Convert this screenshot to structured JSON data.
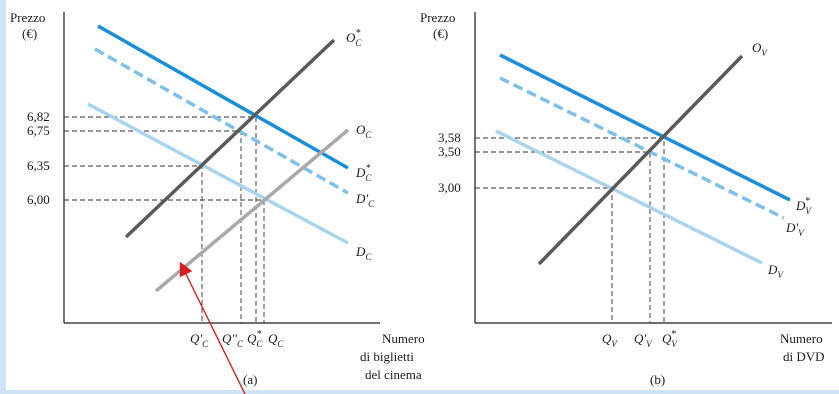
{
  "chart_data": [
    {
      "type": "line",
      "panel": "(a)",
      "ylabel_line1": "Prezzo",
      "ylabel_line2": "(€)",
      "xlabel_line1": "Numero",
      "xlabel_line2": "di biglietti",
      "xlabel_line3": "del cinema",
      "ytick_labels": [
        "6,82",
        "6,75",
        "6,35",
        "6,00"
      ],
      "xtick_labels": [
        "Q'C",
        "Q''C",
        "Q*C",
        "QC"
      ],
      "series": [
        {
          "name": "O*C",
          "color": "#5a5a5a"
        },
        {
          "name": "OC",
          "color": "#a9a9a9"
        },
        {
          "name": "D*C",
          "color": "#1a8fd6"
        },
        {
          "name": "D'C",
          "color": "#7fc0e8",
          "dashed": true
        },
        {
          "name": "DC",
          "color": "#a9d4ee"
        }
      ]
    },
    {
      "type": "line",
      "panel": "(b)",
      "ylabel_line1": "Prezzo",
      "ylabel_line2": "(€)",
      "xlabel_line1": "Numero",
      "xlabel_line2": "di DVD",
      "ytick_labels": [
        "3,58",
        "3,50",
        "3,00"
      ],
      "xtick_labels": [
        "QV",
        "Q'V",
        "Q*V"
      ],
      "series": [
        {
          "name": "OV",
          "color": "#5a5a5a"
        },
        {
          "name": "D*V",
          "color": "#1a8fd6"
        },
        {
          "name": "D'V",
          "color": "#7fc0e8",
          "dashed": true
        },
        {
          "name": "DV",
          "color": "#a9d4ee"
        }
      ]
    }
  ],
  "annotation": {
    "arrow_color": "#d62020"
  }
}
